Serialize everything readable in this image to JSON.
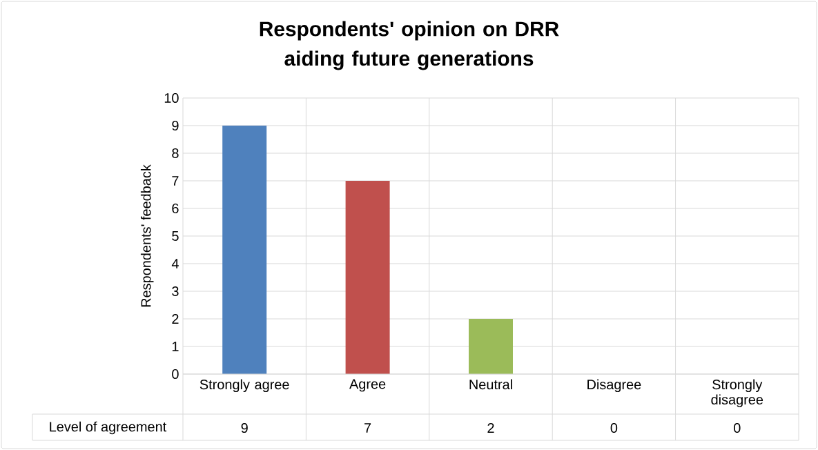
{
  "chart_data": {
    "type": "bar",
    "title": "Respondents' opinion on DRR aiding future generations",
    "ylabel": "Respondents' feedback",
    "categories": [
      "Strongly agree",
      "Agree",
      "Neutral",
      "Disagree",
      "Strongly disagree"
    ],
    "series": [
      {
        "name": "Level of agreement",
        "values": [
          9,
          7,
          2,
          0,
          0
        ],
        "colors": [
          "#4f81bd",
          "#c0504d",
          "#9bbb59",
          "#8064a2",
          "#4bacc6"
        ]
      }
    ],
    "ylim": [
      0,
      10
    ],
    "yticks": [
      0,
      1,
      2,
      3,
      4,
      5,
      6,
      7,
      8,
      9,
      10
    ],
    "grid": true,
    "data_labels": true
  }
}
